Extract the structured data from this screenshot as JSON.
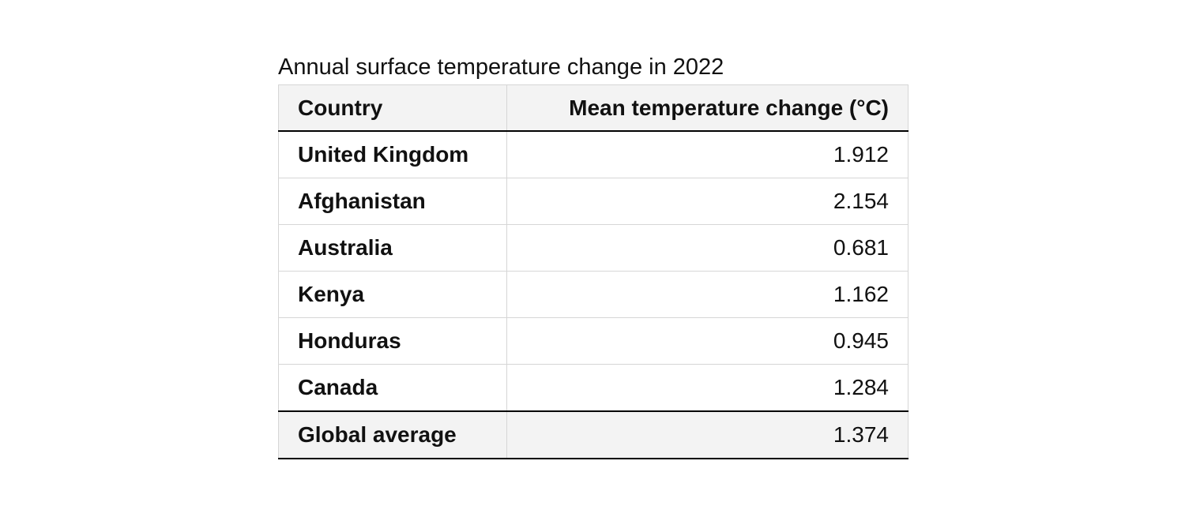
{
  "table": {
    "caption": "Annual surface temperature change in 2022",
    "header": [
      "Country",
      "Mean temperature change (°C)"
    ],
    "rows": [
      [
        "United Kingdom",
        "1.912"
      ],
      [
        "Afghanistan",
        "2.154"
      ],
      [
        "Australia",
        "0.681"
      ],
      [
        "Kenya",
        "1.162"
      ],
      [
        "Honduras",
        "0.945"
      ],
      [
        "Canada",
        "1.284"
      ]
    ],
    "footer": [
      "Global average",
      "1.374"
    ]
  }
}
